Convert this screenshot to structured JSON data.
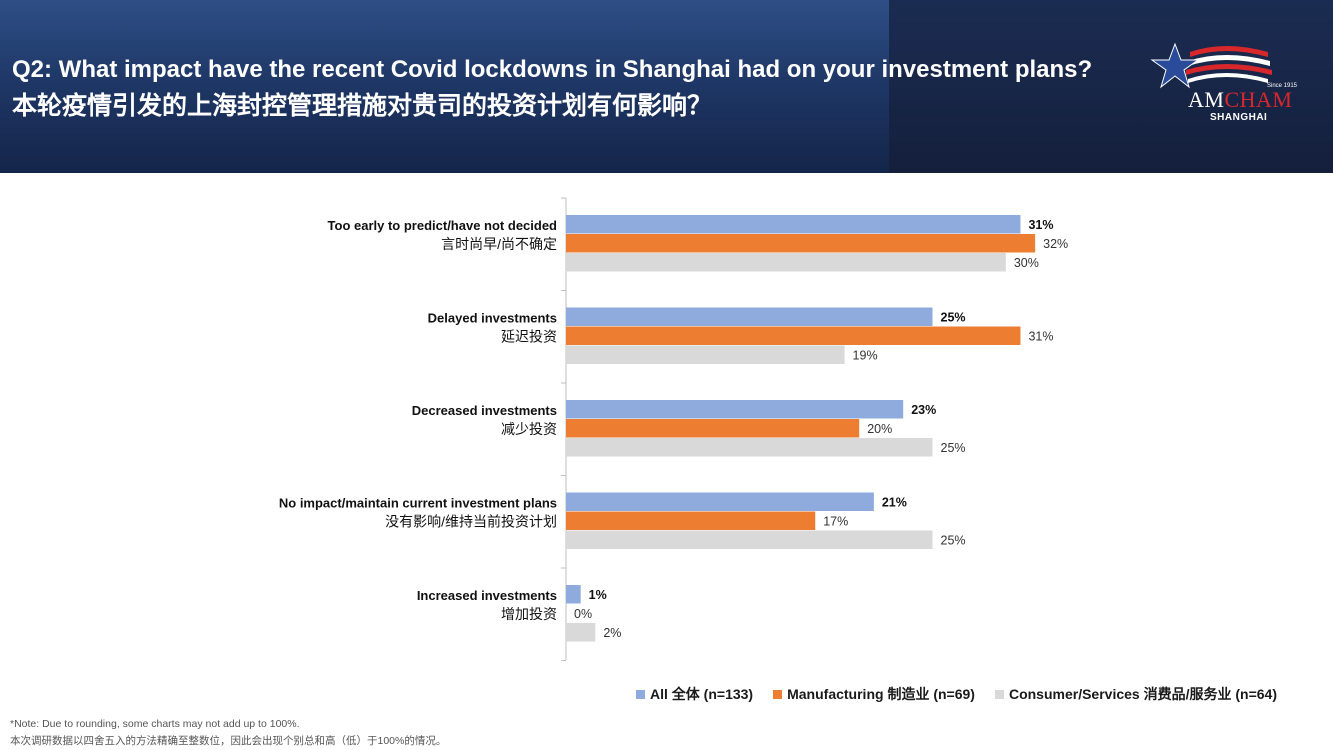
{
  "header": {
    "title_en": "Q2: What impact have the recent Covid lockdowns in Shanghai had on your investment plans?",
    "title_zh": "本轮疫情引发的上海封控管理措施对贵司的投资计划有何影响？"
  },
  "logo": {
    "since": "Since 1915",
    "wordmark_am": "AM",
    "wordmark_cham": "CHAM",
    "city": "SHANGHAI"
  },
  "chart_data": {
    "type": "bar",
    "orientation": "horizontal",
    "categories": [
      {
        "en": "Too early to predict/have not decided",
        "zh": "言时尚早/尚不确定"
      },
      {
        "en": "Delayed investments",
        "zh": "延迟投资"
      },
      {
        "en": "Decreased investments",
        "zh": "减少投资"
      },
      {
        "en": "No impact/maintain current investment plans",
        "zh": "没有影响/维持当前投资计划"
      },
      {
        "en": "Increased investments",
        "zh": "增加投资"
      }
    ],
    "series": [
      {
        "name": "All 全体 (n=133)",
        "color": "#8faadc",
        "values": [
          31,
          25,
          23,
          21,
          1
        ]
      },
      {
        "name": "Manufacturing 制造业 (n=69)",
        "color": "#ed7d31",
        "values": [
          32,
          31,
          20,
          17,
          0
        ]
      },
      {
        "name": "Consumer/Services 消费品/服务业 (n=64)",
        "color": "#d9d9d9",
        "values": [
          30,
          19,
          25,
          25,
          2
        ]
      }
    ],
    "value_suffix": "%",
    "xlim": [
      0,
      35
    ],
    "grid": false,
    "legend_position": "bottom-right"
  },
  "notes": {
    "line1": "*Note: Due to rounding, some charts may not add up to 100%.",
    "line2": "本次调研数据以四舍五入的方法精确至整数位，因此会出现个别总和高（低）于100%的情况。"
  }
}
